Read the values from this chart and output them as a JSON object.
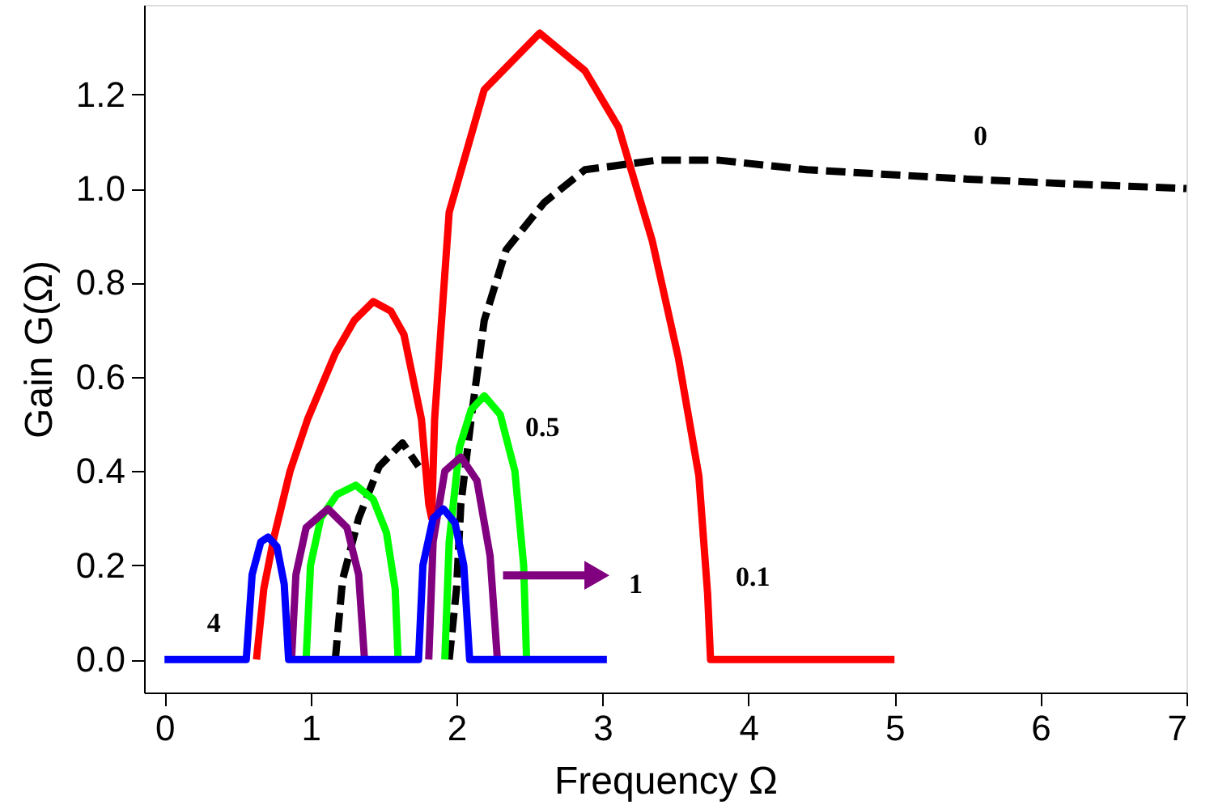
{
  "chart_data": {
    "type": "line",
    "xlabel": "Frequency Ω",
    "ylabel": "Gain G(Ω)",
    "xlim": [
      -0.14,
      7.0
    ],
    "ylim": [
      -0.07,
      1.39
    ],
    "xticks": [
      0,
      1,
      2,
      3,
      4,
      5,
      6,
      7
    ],
    "yticks": [
      {
        "value": 0,
        "label": "0.0"
      },
      0.2,
      0.4,
      0.6,
      0.8,
      {
        "value": 1,
        "label": "1.0"
      },
      1.2
    ],
    "grid": false,
    "marker": "none",
    "series": [
      {
        "name": "0.1",
        "color": "#ff0000",
        "line_style": "solid",
        "x": [
          0.63,
          0.68,
          0.75,
          0.86,
          0.98,
          1.17,
          1.3,
          1.43,
          1.55,
          1.64,
          1.76,
          1.81,
          1.83,
          1.85,
          1.95,
          2.19,
          2.57,
          2.88,
          3.11,
          3.34,
          3.52,
          3.66,
          3.72,
          3.74,
          5.0
        ],
        "values": [
          0,
          0.15,
          0.26,
          0.4,
          0.51,
          0.65,
          0.72,
          0.76,
          0.74,
          0.69,
          0.51,
          0.33,
          0.3,
          0.51,
          0.95,
          1.21,
          1.33,
          1.25,
          1.13,
          0.89,
          0.64,
          0.39,
          0.14,
          0,
          0
        ]
      },
      {
        "name": "0",
        "color": "#000000",
        "line_style": "dashed",
        "x": [
          1.17,
          1.22,
          1.33,
          1.47,
          1.63,
          1.74,
          1.85,
          1.95,
          2.0,
          2.03,
          2.1,
          2.19,
          2.34,
          2.6,
          2.88,
          3.37,
          3.8,
          4.4,
          5.5,
          6.2,
          7.0
        ],
        "values": [
          0,
          0.17,
          0.3,
          0.41,
          0.46,
          0.41,
          null,
          0,
          0.15,
          0.33,
          0.51,
          0.72,
          0.87,
          0.97,
          1.04,
          1.06,
          1.06,
          1.04,
          1.02,
          1.01,
          1.0
        ]
      },
      {
        "name": "0.5",
        "color": "#00ff00",
        "line_style": "solid",
        "x": [
          0.97,
          1.0,
          1.07,
          1.18,
          1.31,
          1.43,
          1.52,
          1.58,
          1.6,
          1.75,
          1.92,
          1.95,
          2.02,
          2.1,
          2.19,
          2.3,
          2.4,
          2.46,
          2.48
        ],
        "values": [
          0,
          0.2,
          0.3,
          0.35,
          0.37,
          0.34,
          0.27,
          0.15,
          0,
          null,
          0,
          0.25,
          0.45,
          0.53,
          0.56,
          0.52,
          0.4,
          0.2,
          0
        ]
      },
      {
        "name": "1",
        "color": "#800080",
        "line_style": "solid",
        "x": [
          0.87,
          0.9,
          0.97,
          1.12,
          1.25,
          1.33,
          1.37,
          1.6,
          1.81,
          1.84,
          1.92,
          2.03,
          2.14,
          2.23,
          2.28
        ],
        "values": [
          0,
          0.18,
          0.28,
          0.32,
          0.28,
          0.18,
          0,
          null,
          0,
          0.25,
          0.4,
          0.43,
          0.38,
          0.22,
          0
        ]
      },
      {
        "name": "4",
        "color": "#0000ff",
        "line_style": "solid",
        "x": [
          0,
          0.56,
          0.6,
          0.66,
          0.71,
          0.77,
          0.82,
          0.85,
          1.74,
          1.77,
          1.84,
          1.91,
          1.99,
          2.05,
          2.09,
          3.03
        ],
        "values": [
          0,
          0,
          0.18,
          0.25,
          0.26,
          0.24,
          0.16,
          0,
          0,
          0.2,
          0.3,
          0.32,
          0.29,
          0.2,
          0,
          0
        ]
      }
    ]
  }
}
